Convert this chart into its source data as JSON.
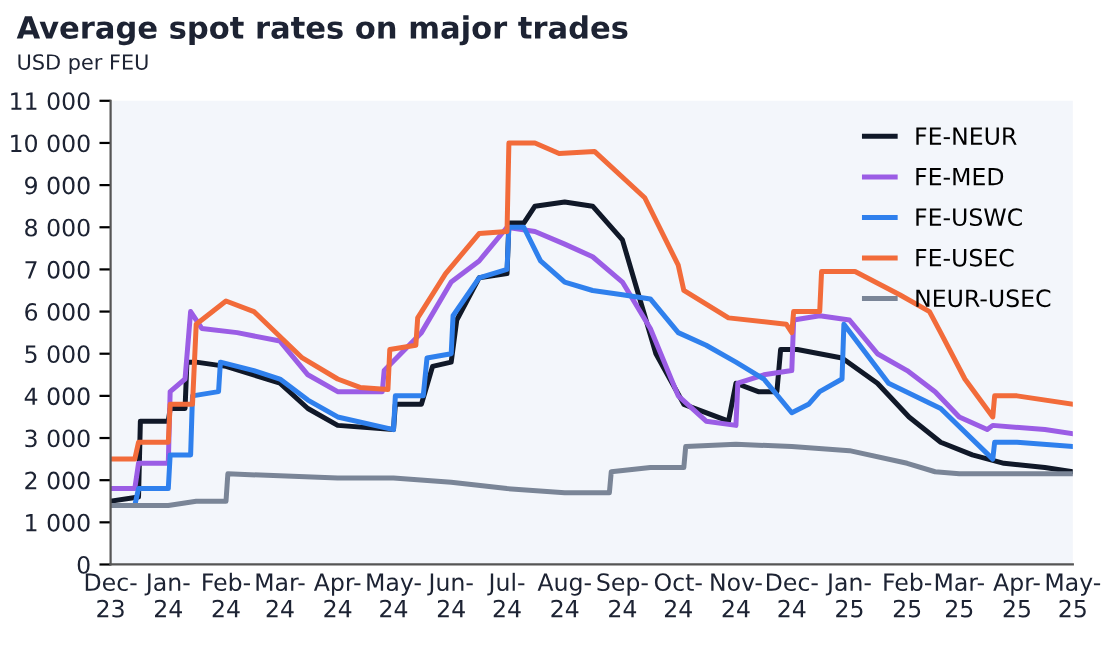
{
  "chart_data": {
    "type": "line",
    "title": "Average spot rates on major trades",
    "subtitle": "USD per FEU",
    "xlim": [
      "2023-12-01",
      "2025-05-01"
    ],
    "xticks": [
      {
        "value": "2023-12-01",
        "label": "Dec-\n23"
      },
      {
        "value": "2024-01-01",
        "label": "Jan-\n24"
      },
      {
        "value": "2024-02-01",
        "label": "Feb-\n24"
      },
      {
        "value": "2024-03-01",
        "label": "Mar-\n24"
      },
      {
        "value": "2024-04-01",
        "label": "Apr-\n24"
      },
      {
        "value": "2024-05-01",
        "label": "May-\n24"
      },
      {
        "value": "2024-06-01",
        "label": "Jun-\n24"
      },
      {
        "value": "2024-07-01",
        "label": "Jul-\n24"
      },
      {
        "value": "2024-08-01",
        "label": "Aug-\n24"
      },
      {
        "value": "2024-09-01",
        "label": "Sep-\n24"
      },
      {
        "value": "2024-10-01",
        "label": "Oct-\n24"
      },
      {
        "value": "2024-11-01",
        "label": "Nov-\n24"
      },
      {
        "value": "2024-12-01",
        "label": "Dec-\n24"
      },
      {
        "value": "2025-01-01",
        "label": "Jan-\n25"
      },
      {
        "value": "2025-02-01",
        "label": "Feb-\n25"
      },
      {
        "value": "2025-03-01",
        "label": "Mar-\n25"
      },
      {
        "value": "2025-04-01",
        "label": "Apr-\n25"
      },
      {
        "value": "2025-05-01",
        "label": "May-\n25"
      }
    ],
    "ylim": [
      0,
      11000
    ],
    "yticks": [
      0,
      {
        "value": 1000,
        "label": "1 000"
      },
      {
        "value": 2000,
        "label": "2 000"
      },
      {
        "value": 3000,
        "label": "3 000"
      },
      {
        "value": 4000,
        "label": "4 000"
      },
      {
        "value": 5000,
        "label": "5 000"
      },
      {
        "value": 6000,
        "label": "6 000"
      },
      {
        "value": 7000,
        "label": "7 000"
      },
      {
        "value": 8000,
        "label": "8 000"
      },
      {
        "value": 9000,
        "label": "9 000"
      },
      {
        "value": 10000,
        "label": "10 000"
      },
      {
        "value": 11000,
        "label": "11 000"
      }
    ],
    "grid": false,
    "legend": "top right",
    "marker": "none",
    "line_style": "solid",
    "series": [
      {
        "name": "FE-NEUR",
        "color": "#101828",
        "x": [
          "2023-12-01",
          "2023-12-16",
          "2023-12-17",
          "2024-01-01",
          "2024-01-02",
          "2024-01-10",
          "2024-01-11",
          "2024-01-16",
          "2024-02-01",
          "2024-03-01",
          "2024-03-16",
          "2024-04-01",
          "2024-05-01",
          "2024-05-02",
          "2024-05-16",
          "2024-05-22",
          "2024-06-01",
          "2024-06-04",
          "2024-06-16",
          "2024-07-01",
          "2024-07-02",
          "2024-07-10",
          "2024-07-16",
          "2024-08-01",
          "2024-08-16",
          "2024-09-01",
          "2024-09-19",
          "2024-10-04",
          "2024-10-28",
          "2024-11-01",
          "2024-11-13",
          "2024-11-23",
          "2024-11-25",
          "2024-12-04",
          "2024-12-28",
          "2025-01-16",
          "2025-02-02",
          "2025-02-19",
          "2025-03-08",
          "2025-03-25",
          "2025-04-16",
          "2025-05-01"
        ],
        "values": [
          1500,
          1600,
          3400,
          3400,
          3700,
          3700,
          4800,
          4800,
          4700,
          4300,
          3700,
          3300,
          3200,
          3800,
          3800,
          4700,
          4800,
          5800,
          6800,
          6900,
          8100,
          8100,
          8500,
          8600,
          8500,
          7700,
          5000,
          3800,
          3400,
          4300,
          4100,
          4100,
          5100,
          5100,
          4900,
          4300,
          3500,
          2900,
          2600,
          2400,
          2300,
          2200
        ]
      },
      {
        "name": "FE-MED",
        "color": "#9b5de5",
        "x": [
          "2023-12-01",
          "2023-12-14",
          "2023-12-16",
          "2024-01-01",
          "2024-01-02",
          "2024-01-10",
          "2024-01-13",
          "2024-01-19",
          "2024-02-07",
          "2024-03-01",
          "2024-03-16",
          "2024-04-01",
          "2024-04-25",
          "2024-04-26",
          "2024-05-16",
          "2024-06-01",
          "2024-06-16",
          "2024-07-01",
          "2024-07-16",
          "2024-08-01",
          "2024-08-16",
          "2024-09-01",
          "2024-09-16",
          "2024-10-01",
          "2024-10-16",
          "2024-11-01",
          "2024-11-02",
          "2024-11-16",
          "2024-12-01",
          "2024-12-02",
          "2024-12-16",
          "2025-01-01",
          "2025-01-16",
          "2025-02-01",
          "2025-02-16",
          "2025-03-01",
          "2025-03-16",
          "2025-03-19",
          "2025-04-16",
          "2025-05-01"
        ],
        "values": [
          1800,
          1800,
          2400,
          2400,
          4100,
          4400,
          6000,
          5600,
          5500,
          5300,
          4500,
          4100,
          4100,
          4600,
          5500,
          6700,
          7200,
          8000,
          7900,
          7600,
          7300,
          6700,
          5600,
          4000,
          3400,
          3300,
          4300,
          4500,
          4600,
          5800,
          5900,
          5800,
          5000,
          4600,
          4100,
          3500,
          3200,
          3300,
          3200,
          3100
        ]
      },
      {
        "name": "FE-USWC",
        "color": "#2f80ed",
        "x": [
          "2023-12-01",
          "2023-12-14",
          "2023-12-16",
          "2024-01-01",
          "2024-01-02",
          "2024-01-13",
          "2024-01-14",
          "2024-01-28",
          "2024-01-29",
          "2024-02-16",
          "2024-03-01",
          "2024-03-16",
          "2024-04-01",
          "2024-05-01",
          "2024-05-02",
          "2024-05-17",
          "2024-05-19",
          "2024-06-01",
          "2024-06-02",
          "2024-06-16",
          "2024-07-01",
          "2024-07-02",
          "2024-07-10",
          "2024-07-19",
          "2024-08-01",
          "2024-08-16",
          "2024-09-01",
          "2024-09-16",
          "2024-10-01",
          "2024-10-16",
          "2024-11-01",
          "2024-11-16",
          "2024-12-01",
          "2024-12-10",
          "2024-12-16",
          "2024-12-28",
          "2024-12-29",
          "2025-01-22",
          "2025-02-19",
          "2025-03-19",
          "2025-03-20",
          "2025-04-01",
          "2025-05-01"
        ],
        "values": [
          1400,
          1400,
          1800,
          1800,
          2600,
          2600,
          4000,
          4100,
          4800,
          4600,
          4400,
          3900,
          3500,
          3200,
          4000,
          4000,
          4900,
          5000,
          5900,
          6800,
          7000,
          8000,
          8000,
          7200,
          6700,
          6500,
          6400,
          6300,
          5500,
          5200,
          4800,
          4400,
          3600,
          3800,
          4100,
          4400,
          5700,
          4300,
          3700,
          2500,
          2900,
          2900,
          2800
        ]
      },
      {
        "name": "FE-USEC",
        "color": "#f26b3a",
        "x": [
          "2023-12-01",
          "2023-12-14",
          "2023-12-16",
          "2024-01-01",
          "2024-01-02",
          "2024-01-14",
          "2024-01-16",
          "2024-02-01",
          "2024-02-16",
          "2024-03-13",
          "2024-04-01",
          "2024-04-13",
          "2024-04-28",
          "2024-04-29",
          "2024-05-13",
          "2024-05-14",
          "2024-05-29",
          "2024-06-16",
          "2024-07-01",
          "2024-07-02",
          "2024-07-16",
          "2024-07-29",
          "2024-08-17",
          "2024-09-13",
          "2024-10-01",
          "2024-10-04",
          "2024-10-28",
          "2024-11-28",
          "2024-12-01",
          "2024-12-02",
          "2024-12-16",
          "2024-12-17",
          "2025-01-04",
          "2025-01-28",
          "2025-02-13",
          "2025-02-19",
          "2025-03-04",
          "2025-03-19",
          "2025-03-20",
          "2025-04-01",
          "2025-05-01"
        ],
        "values": [
          2500,
          2500,
          2900,
          2900,
          3800,
          3800,
          5700,
          6250,
          6000,
          4900,
          4400,
          4200,
          4150,
          5100,
          5200,
          5850,
          6900,
          7850,
          7900,
          10000,
          10000,
          9750,
          9800,
          8700,
          7100,
          6500,
          5850,
          5700,
          5500,
          6000,
          6000,
          6950,
          6950,
          6400,
          6000,
          5500,
          4400,
          3500,
          4000,
          4000,
          3800
        ]
      },
      {
        "name": "NEUR-USEC",
        "color": "#7a8597",
        "x": [
          "2023-12-01",
          "2024-01-01",
          "2024-01-16",
          "2024-02-01",
          "2024-02-02",
          "2024-04-01",
          "2024-05-01",
          "2024-06-01",
          "2024-07-01",
          "2024-08-01",
          "2024-08-25",
          "2024-08-26",
          "2024-09-16",
          "2024-10-04",
          "2024-10-05",
          "2024-11-01",
          "2024-12-01",
          "2025-01-01",
          "2025-02-01",
          "2025-02-16",
          "2025-03-01",
          "2025-05-01"
        ],
        "values": [
          1400,
          1400,
          1500,
          1500,
          2150,
          2050,
          2050,
          1950,
          1800,
          1700,
          1700,
          2200,
          2300,
          2300,
          2800,
          2850,
          2800,
          2700,
          2400,
          2200,
          2150,
          2150
        ]
      }
    ]
  }
}
